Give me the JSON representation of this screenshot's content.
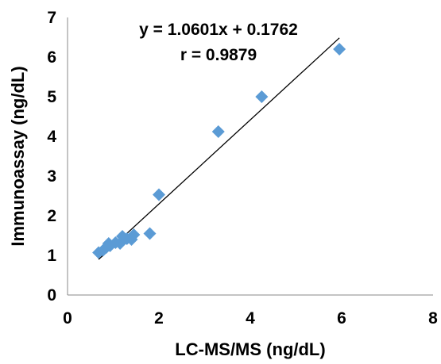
{
  "chart_data": {
    "type": "scatter",
    "title": "",
    "xlabel": "LC-MS/MS (ng/dL)",
    "ylabel": "Immunoassay (ng/dL)",
    "xlim": [
      0,
      8
    ],
    "ylim": [
      0,
      7
    ],
    "x_ticks": [
      "0",
      "2",
      "4",
      "6",
      "8"
    ],
    "y_ticks": [
      "0",
      "1",
      "2",
      "3",
      "4",
      "5",
      "6",
      "7"
    ],
    "grid": false,
    "legend": "none",
    "marker": "diamond",
    "marker_color": "#5B9BD5",
    "trendline_color": "#000000",
    "series": [
      {
        "points": [
          {
            "x": 0.68,
            "y": 1.07
          },
          {
            "x": 0.78,
            "y": 1.13
          },
          {
            "x": 0.85,
            "y": 1.2
          },
          {
            "x": 0.9,
            "y": 1.3
          },
          {
            "x": 0.93,
            "y": 1.24
          },
          {
            "x": 1.05,
            "y": 1.32
          },
          {
            "x": 1.15,
            "y": 1.3
          },
          {
            "x": 1.2,
            "y": 1.48
          },
          {
            "x": 1.3,
            "y": 1.42
          },
          {
            "x": 1.4,
            "y": 1.4
          },
          {
            "x": 1.45,
            "y": 1.52
          },
          {
            "x": 1.8,
            "y": 1.55
          },
          {
            "x": 2.0,
            "y": 2.53
          },
          {
            "x": 3.3,
            "y": 4.12
          },
          {
            "x": 4.25,
            "y": 5.0
          },
          {
            "x": 5.95,
            "y": 6.2
          }
        ]
      }
    ],
    "trendline": {
      "slope": 1.0601,
      "intercept": 0.1762,
      "x_range": [
        0.68,
        5.95
      ],
      "equation_label": "y = 1.0601x + 0.1762",
      "r_label": "r = 0.9879"
    }
  }
}
